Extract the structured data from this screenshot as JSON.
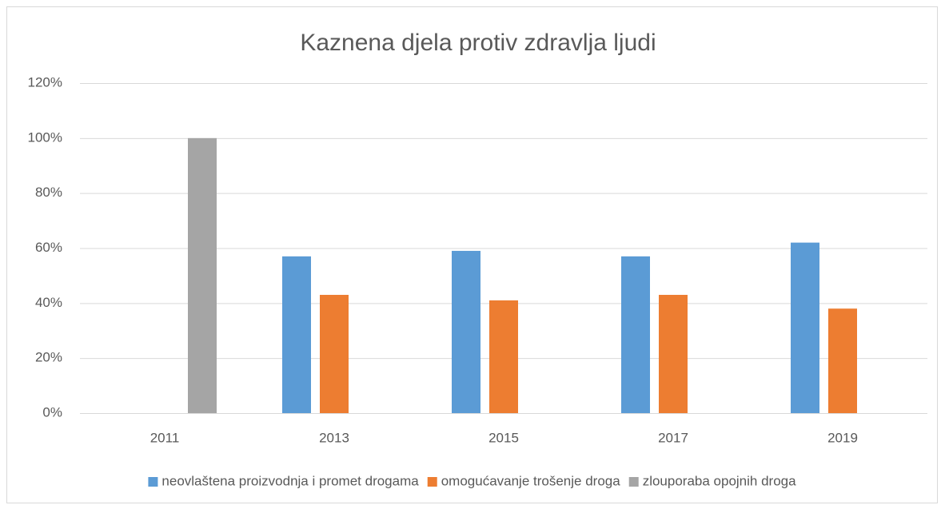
{
  "chart_data": {
    "type": "bar",
    "title": "Kaznena djela protiv zdravlja ljudi",
    "categories": [
      "2011",
      "2013",
      "2015",
      "2017",
      "2019"
    ],
    "series": [
      {
        "name": "neovlaštena proizvodnja i promet drogama",
        "color": "#5b9bd5",
        "values": [
          0,
          57,
          59,
          57,
          62
        ]
      },
      {
        "name": "omogućavanje trošenje droga",
        "color": "#ed7d31",
        "values": [
          0,
          43,
          41,
          43,
          38
        ]
      },
      {
        "name": "zlouporaba opojnih droga",
        "color": "#a5a5a5",
        "values": [
          100,
          0,
          0,
          0,
          0
        ]
      }
    ],
    "ylim": [
      0,
      120
    ],
    "yticks": [
      {
        "value": 0,
        "label": "0%"
      },
      {
        "value": 20,
        "label": "20%"
      },
      {
        "value": 40,
        "label": "40%"
      },
      {
        "value": 60,
        "label": "60%"
      },
      {
        "value": 80,
        "label": "80%"
      },
      {
        "value": 100,
        "label": "100%"
      },
      {
        "value": 120,
        "label": "120%"
      }
    ],
    "grid": true,
    "legend": "bottom"
  }
}
